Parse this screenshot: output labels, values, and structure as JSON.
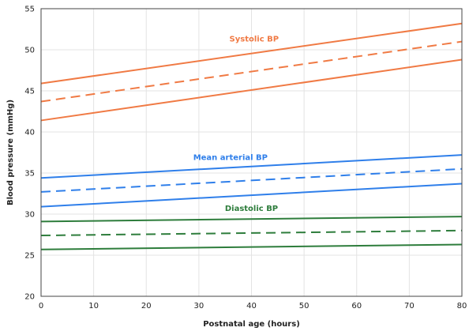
{
  "chart_data": {
    "type": "line",
    "xlabel": "Postnatal age (hours)",
    "ylabel": "Blood pressure (mmHg)",
    "xlim": [
      0,
      80
    ],
    "ylim": [
      20,
      55
    ],
    "xticks": [
      0,
      10,
      20,
      30,
      40,
      50,
      60,
      70,
      80
    ],
    "yticks": [
      20,
      25,
      30,
      35,
      40,
      45,
      50,
      55
    ],
    "grid": true,
    "x": [
      0,
      80
    ],
    "series": [
      {
        "group": "Systolic BP",
        "band": "upper",
        "style": "solid",
        "color": "#f07a44",
        "values": [
          45.9,
          53.2
        ]
      },
      {
        "group": "Systolic BP",
        "band": "middle",
        "style": "dashed",
        "color": "#f07a44",
        "values": [
          43.7,
          51.0
        ]
      },
      {
        "group": "Systolic BP",
        "band": "lower",
        "style": "solid",
        "color": "#f07a44",
        "values": [
          41.4,
          48.8
        ]
      },
      {
        "group": "Mean arterial BP",
        "band": "upper",
        "style": "solid",
        "color": "#2f7fea",
        "values": [
          34.4,
          37.2
        ]
      },
      {
        "group": "Mean arterial BP",
        "band": "middle",
        "style": "dashed",
        "color": "#2f7fea",
        "values": [
          32.7,
          35.5
        ]
      },
      {
        "group": "Mean arterial BP",
        "band": "lower",
        "style": "solid",
        "color": "#2f7fea",
        "values": [
          30.9,
          33.7
        ]
      },
      {
        "group": "Diastolic BP",
        "band": "upper",
        "style": "solid",
        "color": "#2e7d3c",
        "values": [
          29.1,
          29.7
        ]
      },
      {
        "group": "Diastolic BP",
        "band": "middle",
        "style": "dashed",
        "color": "#2e7d3c",
        "values": [
          27.4,
          28.0
        ]
      },
      {
        "group": "Diastolic BP",
        "band": "lower",
        "style": "solid",
        "color": "#2e7d3c",
        "values": [
          25.7,
          26.3
        ]
      }
    ],
    "annotations": [
      {
        "text": "Systolic BP",
        "x": 40.5,
        "y": 51.0,
        "color": "#f07a44"
      },
      {
        "text": "Mean arterial BP",
        "x": 36.0,
        "y": 36.6,
        "color": "#2f7fea"
      },
      {
        "text": "Diastolic BP",
        "x": 40.0,
        "y": 30.4,
        "color": "#2e7d3c"
      }
    ],
    "colors": {
      "grid": "#e3e3e3",
      "axis": "#444444",
      "text": "#222222"
    }
  }
}
